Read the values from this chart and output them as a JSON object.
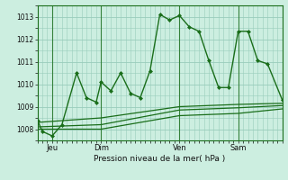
{
  "background_color": "#cceee0",
  "grid_color": "#99ccbb",
  "line_color": "#1a6e1a",
  "title": "Pression niveau de la mer( hPa )",
  "ylabel_ticks": [
    1008,
    1009,
    1010,
    1011,
    1012,
    1013
  ],
  "ylim": [
    1007.5,
    1013.5
  ],
  "xlim": [
    0,
    50
  ],
  "day_ticks": [
    {
      "x": 3,
      "label": "Jeu"
    },
    {
      "x": 13,
      "label": "Dim"
    },
    {
      "x": 29,
      "label": "Ven"
    },
    {
      "x": 41,
      "label": "Sam"
    }
  ],
  "series": [
    {
      "x": [
        0,
        1,
        3,
        5,
        8,
        10,
        12,
        13,
        15,
        17,
        19,
        21,
        23,
        25,
        27,
        29,
        31,
        33,
        35,
        37,
        39,
        41,
        43,
        45,
        47,
        50
      ],
      "y": [
        1008.4,
        1007.9,
        1007.7,
        1008.2,
        1010.5,
        1009.4,
        1009.2,
        1010.1,
        1009.7,
        1010.5,
        1009.6,
        1009.4,
        1010.6,
        1013.1,
        1012.85,
        1013.05,
        1012.55,
        1012.35,
        1011.05,
        1009.85,
        1009.85,
        1012.35,
        1012.35,
        1011.05,
        1010.9,
        1009.3
      ],
      "marker": "D",
      "markersize": 2.0,
      "linewidth": 1.0
    },
    {
      "x": [
        0,
        13,
        29,
        41,
        50
      ],
      "y": [
        1008.3,
        1008.5,
        1009.0,
        1009.1,
        1009.15
      ],
      "marker": null,
      "linewidth": 0.9
    },
    {
      "x": [
        0,
        13,
        29,
        41,
        50
      ],
      "y": [
        1008.1,
        1008.2,
        1008.85,
        1008.95,
        1009.05
      ],
      "marker": null,
      "linewidth": 0.9
    },
    {
      "x": [
        0,
        13,
        29,
        41,
        50
      ],
      "y": [
        1008.0,
        1008.0,
        1008.6,
        1008.7,
        1008.9
      ],
      "marker": null,
      "linewidth": 0.9
    }
  ]
}
